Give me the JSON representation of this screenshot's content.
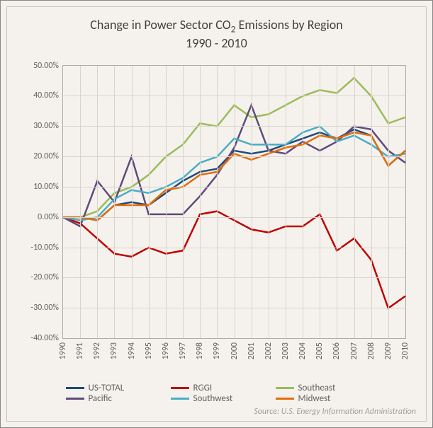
{
  "chart": {
    "type": "line",
    "title_line1": "Change in Power Sector CO",
    "title_sub": "2",
    "title_line1b": " Emissions by Region",
    "title_line2": "1990 - 2010",
    "title_fontsize": 18,
    "title_color": "#404040",
    "background_color": "#f5f2ed",
    "border_color": "#888888",
    "inner_border_color": "#c8c4bc",
    "plot_border_color": "#b0aca4",
    "grid_color": "#d8d4cc",
    "label_color": "#606060",
    "label_fontsize": 12,
    "years": [
      1990,
      1991,
      1992,
      1993,
      1994,
      1995,
      1996,
      1997,
      1998,
      1999,
      2000,
      2001,
      2002,
      2003,
      2004,
      2005,
      2006,
      2007,
      2008,
      2009,
      2010
    ],
    "ylim": [
      -40,
      50
    ],
    "ytick_step": 10,
    "ytick_labels": [
      "-40.00%",
      "-30.00%",
      "-20.00%",
      "-10.00%",
      "0.00%",
      "10.00%",
      "20.00%",
      "30.00%",
      "40.00%",
      "50.00%"
    ],
    "line_width": 2.5,
    "series": [
      {
        "name": "US-TOTAL",
        "color": "#1f497d",
        "data": [
          0,
          0,
          -1,
          4,
          5,
          4,
          8,
          12,
          15,
          16,
          22,
          21,
          22,
          24,
          26,
          28,
          26,
          29,
          27,
          17,
          22
        ]
      },
      {
        "name": "RGGI",
        "color": "#c00000",
        "data": [
          0,
          -2,
          -7,
          -12,
          -13,
          -10,
          -12,
          -11,
          1,
          2,
          -1,
          -4,
          -5,
          -3,
          -3,
          1,
          -11,
          -7,
          -14,
          -30,
          -26
        ]
      },
      {
        "name": "Southeast",
        "color": "#9bbb59",
        "data": [
          0,
          0,
          2,
          8,
          10,
          14,
          20,
          24,
          31,
          30,
          37,
          33,
          34,
          37,
          40,
          42,
          41,
          46,
          40,
          31,
          33
        ]
      },
      {
        "name": "Pacific",
        "color": "#604a7b",
        "data": [
          0,
          -3,
          12,
          5,
          20,
          1,
          1,
          1,
          7,
          14,
          23,
          37,
          22,
          21,
          25,
          22,
          25,
          30,
          29,
          22,
          18
        ]
      },
      {
        "name": "Southwest",
        "color": "#4bacc6",
        "data": [
          0,
          -1,
          0,
          6,
          9,
          8,
          10,
          13,
          18,
          20,
          26,
          24,
          24,
          24,
          28,
          30,
          25,
          27,
          24,
          20,
          21
        ]
      },
      {
        "name": "Midwest",
        "color": "#e46c0a",
        "data": [
          0,
          0,
          -1,
          4,
          4,
          4,
          9,
          10,
          14,
          15,
          21,
          19,
          21,
          23,
          24,
          27,
          26,
          28,
          27,
          17,
          22
        ]
      }
    ]
  },
  "source": "Source: U.S. Energy Information Administration",
  "source_color": "#a0a098",
  "source_fontsize": 12
}
